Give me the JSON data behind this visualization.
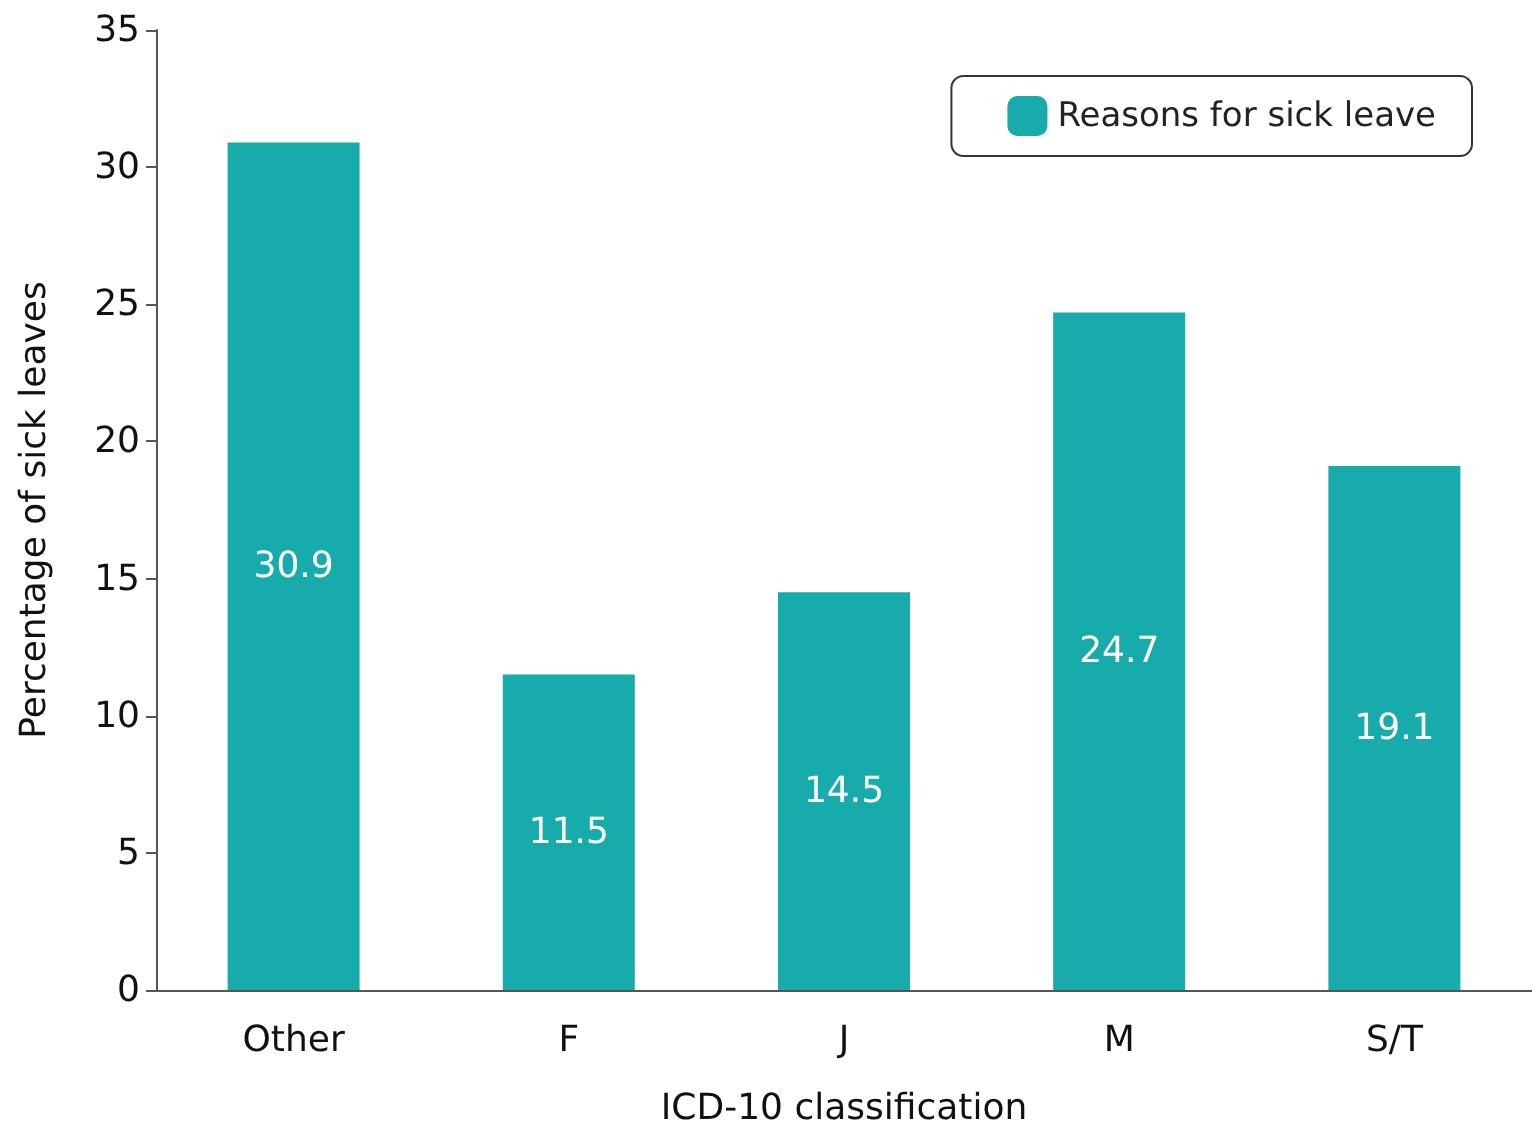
{
  "chart_data": {
    "type": "bar",
    "xlabel": "ICD-10 classification",
    "ylabel": "Percentage of sick leaves",
    "categories": [
      "Other",
      "F",
      "J",
      "M",
      "S/T"
    ],
    "series": [
      {
        "name": "Reasons for sick leave",
        "color": "#17abab",
        "values": [
          30.9,
          11.5,
          14.5,
          24.7,
          19.1
        ]
      }
    ],
    "ylim": [
      0,
      35
    ],
    "yticks": [
      0,
      5,
      10,
      15,
      20,
      25,
      30,
      35
    ],
    "data_labels": true,
    "grid": false,
    "legend": "top right"
  }
}
